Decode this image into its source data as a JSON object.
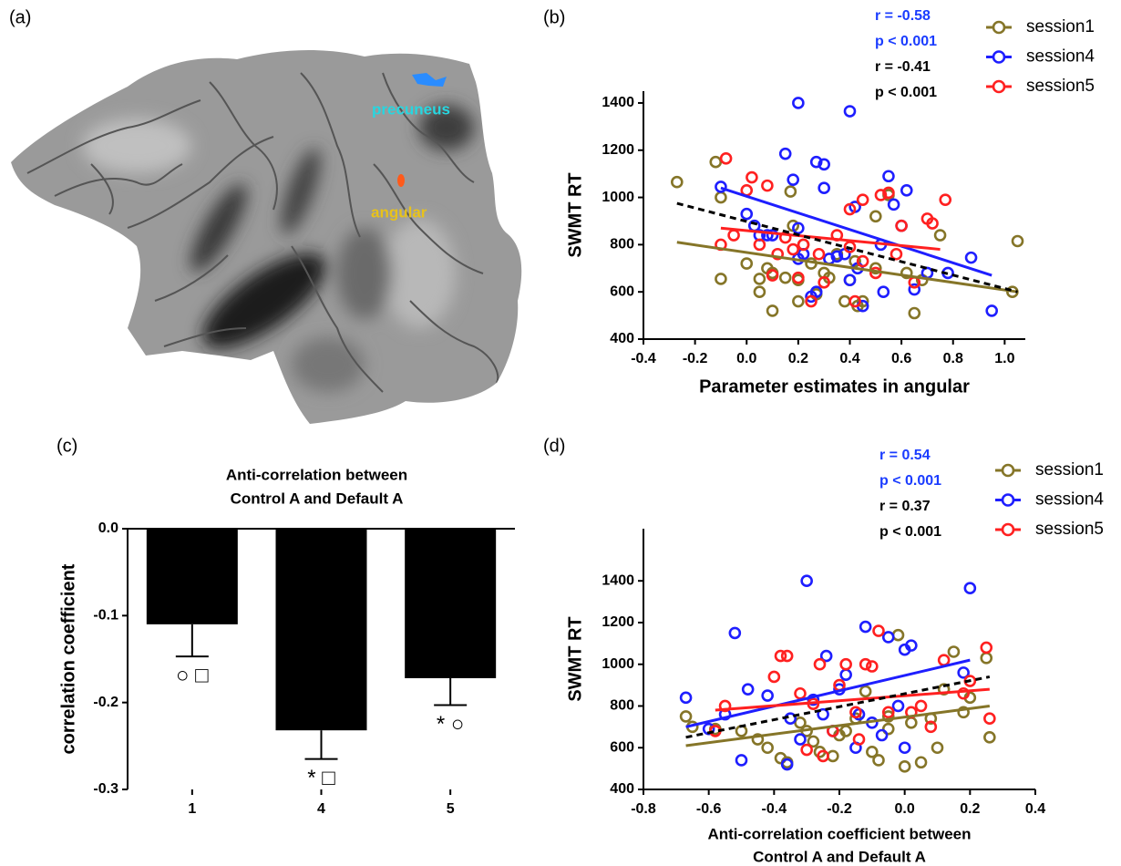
{
  "figure": {
    "panel_labels": [
      "(a)",
      "(b)",
      "(c)",
      "(d)"
    ],
    "brain": {
      "labels": [
        "precuneus",
        "angular"
      ]
    }
  },
  "chart_data": [
    {
      "type": "scatter",
      "xlabel": "Parameter estimates in angular",
      "ylabel": "SWMT RT",
      "xlim": [
        -0.4,
        1.08
      ],
      "ylim": [
        400,
        1450
      ],
      "xticks": [
        -0.4,
        -0.2,
        {
          "value": 0,
          "label": "0.0"
        },
        0.2,
        0.4,
        0.6,
        0.8,
        {
          "value": 1,
          "label": "1.0"
        }
      ],
      "yticks": [
        400,
        600,
        800,
        1000,
        1200,
        1400
      ],
      "annotations": [
        {
          "text": "r = -0.58",
          "color": "#1a3cff"
        },
        {
          "text": "p < 0.001",
          "color": "#1a3cff"
        },
        {
          "text": "r = -0.41",
          "color": "#000000"
        },
        {
          "text": "p < 0.001",
          "color": "#000000"
        }
      ],
      "series": [
        {
          "name": "session1",
          "color": "#857528",
          "x": [
            -0.27,
            -0.12,
            -0.1,
            -0.1,
            0.0,
            0.05,
            0.05,
            0.08,
            0.1,
            0.1,
            0.15,
            0.18,
            0.2,
            0.2,
            0.22,
            0.25,
            0.3,
            0.32,
            0.35,
            0.38,
            0.4,
            0.42,
            0.43,
            0.45,
            0.5,
            0.5,
            0.55,
            0.62,
            0.65,
            0.68,
            0.75,
            1.03,
            1.05,
            0.17,
            0.27
          ],
          "values": [
            1065,
            1150,
            655,
            1000,
            720,
            600,
            655,
            700,
            520,
            680,
            660,
            880,
            650,
            560,
            800,
            720,
            680,
            660,
            760,
            560,
            650,
            730,
            540,
            560,
            700,
            920,
            1010,
            680,
            510,
            650,
            840,
            600,
            815,
            1025,
            590
          ],
          "fit": {
            "x": [
              -0.27,
              1.05
            ],
            "values": [
              810,
              600
            ]
          }
        },
        {
          "name": "session4",
          "color": "#1e1eff",
          "x": [
            -0.1,
            0.0,
            0.03,
            0.05,
            0.1,
            0.15,
            0.18,
            0.2,
            0.2,
            0.2,
            0.22,
            0.25,
            0.27,
            0.3,
            0.3,
            0.32,
            0.35,
            0.38,
            0.4,
            0.4,
            0.42,
            0.43,
            0.45,
            0.52,
            0.53,
            0.55,
            0.57,
            0.6,
            0.62,
            0.65,
            0.7,
            0.78,
            0.87,
            0.95,
            0.08,
            0.27
          ],
          "values": [
            1045,
            930,
            880,
            840,
            840,
            1185,
            1075,
            870,
            1400,
            740,
            760,
            580,
            1150,
            1140,
            1040,
            740,
            750,
            760,
            650,
            1365,
            960,
            700,
            540,
            800,
            600,
            1090,
            970,
            880,
            1030,
            610,
            680,
            680,
            745,
            520,
            840,
            600
          ],
          "fit": {
            "x": [
              -0.1,
              0.95
            ],
            "values": [
              1040,
              670
            ]
          }
        },
        {
          "name": "session5",
          "color": "#ff2020",
          "x": [
            -0.1,
            -0.08,
            -0.05,
            0.0,
            0.02,
            0.05,
            0.08,
            0.1,
            0.12,
            0.15,
            0.18,
            0.2,
            0.22,
            0.25,
            0.28,
            0.3,
            0.35,
            0.4,
            0.4,
            0.42,
            0.45,
            0.5,
            0.52,
            0.55,
            0.58,
            0.6,
            0.65,
            0.7,
            0.72,
            0.77,
            0.45
          ],
          "values": [
            800,
            1165,
            840,
            1030,
            1085,
            800,
            1050,
            670,
            760,
            830,
            780,
            660,
            800,
            560,
            760,
            640,
            840,
            950,
            790,
            560,
            730,
            680,
            1010,
            1020,
            760,
            880,
            640,
            910,
            890,
            990,
            990
          ],
          "fit": {
            "x": [
              -0.1,
              0.75
            ],
            "values": [
              870,
              780
            ]
          }
        }
      ],
      "overall_fit": {
        "x": [
          -0.27,
          1.05
        ],
        "values": [
          975,
          600
        ],
        "color": "#000000"
      }
    },
    {
      "type": "bar",
      "title": [
        "Anti-correlation between",
        "Control A and Default A"
      ],
      "ylabel": "correlation coefficient",
      "categories": [
        "1",
        "4",
        "5"
      ],
      "values": [
        -0.11,
        -0.232,
        -0.172
      ],
      "errors": [
        0.037,
        0.033,
        0.031
      ],
      "sig_labels": [
        "○ □",
        "* □",
        "* ○"
      ],
      "color": "#000000",
      "ylim": [
        -0.3,
        0
      ],
      "yticks": [
        {
          "value": 0,
          "label": "0.0"
        },
        -0.1,
        -0.2,
        -0.3
      ]
    },
    {
      "type": "scatter",
      "xlabel": [
        "Anti-correlation coefficient between",
        "Control A and Default A"
      ],
      "ylabel": "SWMT RT",
      "xlim": [
        -0.8,
        0.4
      ],
      "ylim": [
        400,
        1650
      ],
      "xticks": [
        -0.8,
        -0.6,
        -0.4,
        -0.2,
        {
          "value": 0,
          "label": "0.0"
        },
        0.2,
        0.4
      ],
      "yticks": [
        400,
        600,
        800,
        1000,
        1200,
        1400
      ],
      "annotations": [
        {
          "text": "r = 0.54",
          "color": "#1a3cff"
        },
        {
          "text": "p < 0.001",
          "color": "#1a3cff"
        },
        {
          "text": "r = 0.37",
          "color": "#000000"
        },
        {
          "text": "p < 0.001",
          "color": "#000000"
        }
      ],
      "series": [
        {
          "name": "session1",
          "color": "#857528",
          "x": [
            -0.67,
            -0.65,
            -0.58,
            -0.5,
            -0.45,
            -0.42,
            -0.38,
            -0.36,
            -0.32,
            -0.3,
            -0.28,
            -0.26,
            -0.22,
            -0.2,
            -0.18,
            -0.15,
            -0.12,
            -0.1,
            -0.08,
            -0.05,
            -0.02,
            0.0,
            0.02,
            0.05,
            0.08,
            0.1,
            0.12,
            0.15,
            0.2,
            0.25,
            0.26,
            -0.05,
            0.18
          ],
          "values": [
            750,
            700,
            690,
            680,
            640,
            600,
            550,
            530,
            720,
            680,
            630,
            580,
            560,
            660,
            680,
            740,
            870,
            580,
            540,
            690,
            1140,
            510,
            720,
            530,
            740,
            600,
            880,
            1060,
            840,
            1030,
            650,
            750,
            770
          ],
          "fit": {
            "x": [
              -0.67,
              0.26
            ],
            "values": [
              610,
              800
            ]
          }
        },
        {
          "name": "session4",
          "color": "#1e1eff",
          "x": [
            -0.67,
            -0.6,
            -0.55,
            -0.52,
            -0.5,
            -0.48,
            -0.42,
            -0.36,
            -0.35,
            -0.32,
            -0.3,
            -0.28,
            -0.25,
            -0.24,
            -0.2,
            -0.18,
            -0.15,
            -0.14,
            -0.12,
            -0.1,
            -0.07,
            -0.05,
            -0.02,
            0.0,
            0.02,
            0.0,
            0.18,
            0.2,
            -0.22
          ],
          "values": [
            840,
            690,
            760,
            1150,
            540,
            880,
            850,
            520,
            740,
            640,
            1400,
            830,
            760,
            1040,
            880,
            950,
            600,
            760,
            1180,
            720,
            660,
            1130,
            800,
            1070,
            1090,
            600,
            960,
            1365,
            680
          ],
          "fit": {
            "x": [
              -0.67,
              0.2
            ],
            "values": [
              700,
              1020
            ]
          }
        },
        {
          "name": "session5",
          "color": "#ff2020",
          "x": [
            -0.58,
            -0.55,
            -0.4,
            -0.38,
            -0.36,
            -0.32,
            -0.3,
            -0.28,
            -0.26,
            -0.25,
            -0.22,
            -0.2,
            -0.18,
            -0.15,
            -0.12,
            -0.1,
            -0.08,
            -0.05,
            0.02,
            0.05,
            0.08,
            0.12,
            0.18,
            0.2,
            0.25,
            0.26,
            -0.14
          ],
          "values": [
            680,
            800,
            940,
            1040,
            1040,
            860,
            590,
            810,
            1000,
            560,
            680,
            900,
            1000,
            770,
            1000,
            990,
            1160,
            770,
            770,
            800,
            700,
            1020,
            860,
            920,
            1080,
            740,
            640
          ],
          "fit": {
            "x": [
              -0.58,
              0.26
            ],
            "values": [
              780,
              880
            ]
          }
        }
      ],
      "overall_fit": {
        "x": [
          -0.67,
          0.26
        ],
        "values": [
          650,
          940
        ],
        "color": "#000000"
      }
    }
  ]
}
